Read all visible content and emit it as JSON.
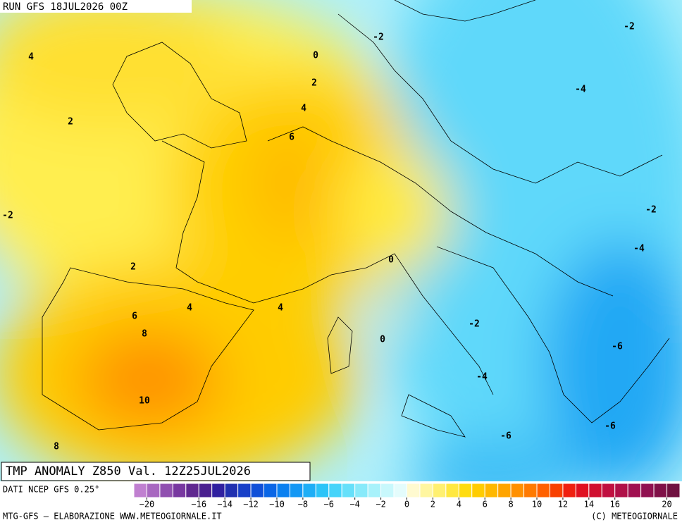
{
  "header": {
    "run": "RUN GFS 18JUL2026 00Z",
    "title": "TMP ANOMALY Z850 Val. 12Z25JUL2026"
  },
  "contour_labels": [
    4,
    2,
    -2,
    0,
    2,
    4,
    6,
    -2,
    -2,
    -4,
    -2,
    -4,
    2,
    0,
    4,
    4,
    6,
    8,
    -2,
    0,
    -6,
    -4,
    10,
    -6,
    -6,
    8
  ],
  "colorbar": {
    "source": "DATI NCEP GFS 0.25°",
    "range": [
      -21,
      21
    ],
    "colors": [
      "#c080d0",
      "#a868c0",
      "#9050b0",
      "#7838a0",
      "#602890",
      "#4a2090",
      "#3020a0",
      "#2030b0",
      "#1840c8",
      "#1050d8",
      "#0a66e6",
      "#0a80f0",
      "#1498f4",
      "#1eaef6",
      "#2cc4f8",
      "#46d4fa",
      "#66e0fa",
      "#88eafa",
      "#a8f2fb",
      "#c8f8fc",
      "#e4fcfc",
      "#fffad0",
      "#fff6a0",
      "#fff070",
      "#ffe840",
      "#ffdc10",
      "#ffcc00",
      "#ffb800",
      "#ffa400",
      "#ff9000",
      "#ff7a00",
      "#ff6000",
      "#f84000",
      "#f02010",
      "#e01020",
      "#d01030",
      "#c01040",
      "#b01048",
      "#a01050",
      "#901050",
      "#801048",
      "#701040"
    ],
    "ticks": [
      {
        "value": -20,
        "label": "−20"
      },
      {
        "value": -16,
        "label": "−16"
      },
      {
        "value": -14,
        "label": "−14"
      },
      {
        "value": -12,
        "label": "−12"
      },
      {
        "value": -10,
        "label": "−10"
      },
      {
        "value": -8,
        "label": "−8"
      },
      {
        "value": -6,
        "label": "−6"
      },
      {
        "value": -4,
        "label": "−4"
      },
      {
        "value": -2,
        "label": "−2"
      },
      0,
      2,
      4,
      6,
      8,
      10,
      12,
      14,
      16,
      20
    ]
  },
  "footer": {
    "left": "MTG-GFS — ELABORAZIONE WWW.METEOGIORNALE.IT",
    "right": "(C) METEOGIORNALE"
  }
}
